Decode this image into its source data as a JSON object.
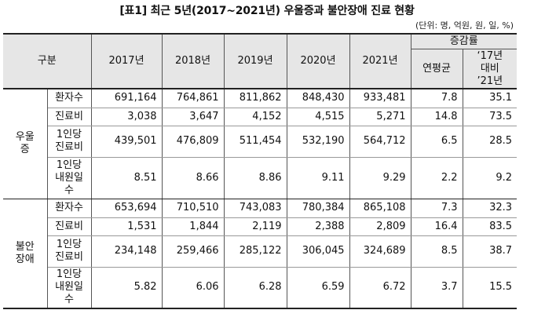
{
  "title": "[표1] 최근 5년(2017~2021년) 우울증과 불안장애 진료 현황",
  "unit_note": "(단위: 명, 억원, 원, 일, %)",
  "header": {
    "category": "구분",
    "years": [
      "2017년",
      "2018년",
      "2019년",
      "2020년",
      "2021년"
    ],
    "growth": "증감률",
    "growth_avg": "연평균",
    "growth_cmp_1": "‘17년",
    "growth_cmp_2": "대비",
    "growth_cmp_3": "’21년"
  },
  "sections": [
    {
      "name_1": "우울",
      "name_2": "증",
      "rows": [
        {
          "label": [
            "환자수"
          ],
          "values": [
            "691,164",
            "764,861",
            "811,862",
            "848,430",
            "933,481"
          ],
          "avg": "7.8",
          "cmp": "35.1"
        },
        {
          "label": [
            "진료비"
          ],
          "values": [
            "3,038",
            "3,647",
            "4,152",
            "4,515",
            "5,271"
          ],
          "avg": "14.8",
          "cmp": "73.5"
        },
        {
          "label": [
            "1인당",
            "진료비"
          ],
          "values": [
            "439,501",
            "476,809",
            "511,454",
            "532,190",
            "564,712"
          ],
          "avg": "6.5",
          "cmp": "28.5"
        },
        {
          "label": [
            "1인당",
            "내원일",
            "수"
          ],
          "values": [
            "8.51",
            "8.66",
            "8.86",
            "9.11",
            "9.29"
          ],
          "avg": "2.2",
          "cmp": "9.2"
        }
      ]
    },
    {
      "name_1": "불안",
      "name_2": "장애",
      "rows": [
        {
          "label": [
            "환자수"
          ],
          "values": [
            "653,694",
            "710,510",
            "743,083",
            "780,384",
            "865,108"
          ],
          "avg": "7.3",
          "cmp": "32.3"
        },
        {
          "label": [
            "진료비"
          ],
          "values": [
            "1,531",
            "1,844",
            "2,119",
            "2,388",
            "2,809"
          ],
          "avg": "16.4",
          "cmp": "83.5"
        },
        {
          "label": [
            "1인당",
            "진료비"
          ],
          "values": [
            "234,148",
            "259,466",
            "285,122",
            "306,045",
            "324,689"
          ],
          "avg": "8.5",
          "cmp": "38.7"
        },
        {
          "label": [
            "1인당",
            "내원일",
            "수"
          ],
          "values": [
            "5.82",
            "6.06",
            "6.28",
            "6.59",
            "6.72"
          ],
          "avg": "3.7",
          "cmp": "15.5"
        }
      ]
    }
  ]
}
